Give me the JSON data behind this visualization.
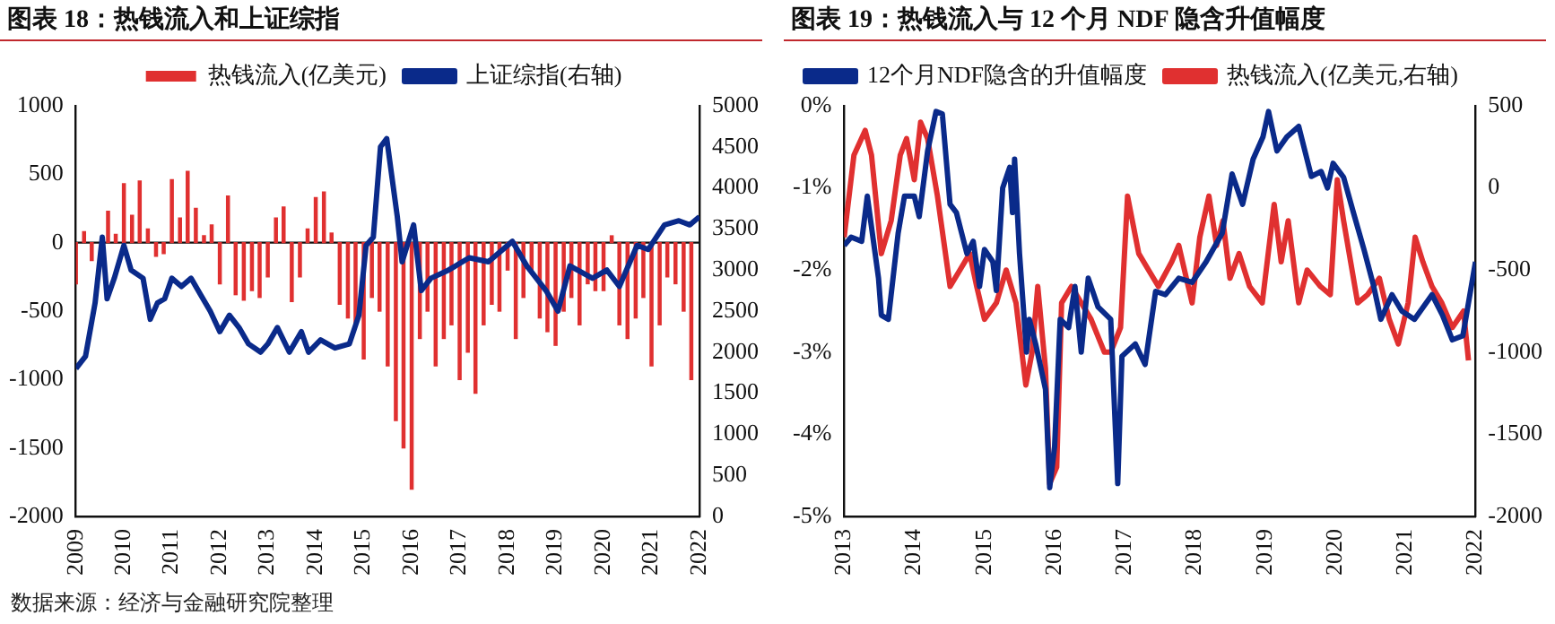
{
  "chart_data": [
    {
      "type": "bar",
      "title": "图表 18：热钱流入和上证综指",
      "annotations": [
        "数据来源：经济与金融研究院整理"
      ],
      "xlim": [
        2009,
        2022
      ],
      "xticks": [
        2009,
        2010,
        2011,
        2012,
        2013,
        2014,
        2015,
        2016,
        2017,
        2018,
        2019,
        2020,
        2021,
        2022
      ],
      "ylim": [
        -2000,
        1000
      ],
      "yticks": [
        -2000,
        -1500,
        -1000,
        -500,
        0,
        500,
        1000
      ],
      "y2lim": [
        0,
        5000
      ],
      "y2ticks": [
        0,
        500,
        1000,
        1500,
        2000,
        2500,
        3000,
        3500,
        4000,
        4500,
        5000
      ],
      "legend": "top",
      "series": [
        {
          "name": "热钱流入(亿美元)",
          "type": "bar",
          "color": "#e03030",
          "x": [
            2009,
            2009.17,
            2009.33,
            2009.5,
            2009.67,
            2009.83,
            2010,
            2010.17,
            2010.33,
            2010.5,
            2010.67,
            2010.83,
            2011,
            2011.17,
            2011.33,
            2011.5,
            2011.67,
            2011.83,
            2012,
            2012.17,
            2012.33,
            2012.5,
            2012.67,
            2012.83,
            2013,
            2013.17,
            2013.33,
            2013.5,
            2013.67,
            2013.83,
            2014,
            2014.17,
            2014.33,
            2014.5,
            2014.67,
            2014.83,
            2015,
            2015.17,
            2015.33,
            2015.5,
            2015.67,
            2015.83,
            2016,
            2016.17,
            2016.33,
            2016.5,
            2016.67,
            2016.83,
            2017,
            2017.17,
            2017.33,
            2017.5,
            2017.67,
            2017.83,
            2018,
            2018.17,
            2018.33,
            2018.5,
            2018.67,
            2018.83,
            2019,
            2019.17,
            2019.33,
            2019.5,
            2019.67,
            2019.83,
            2020,
            2020.17,
            2020.33,
            2020.5,
            2020.67,
            2020.83,
            2021,
            2021.17,
            2021.33,
            2021.5,
            2021.67,
            2021.83
          ],
          "values": [
            -300,
            80,
            -130,
            null,
            230,
            60,
            430,
            200,
            450,
            100,
            -100,
            -80,
            460,
            180,
            520,
            250,
            50,
            130,
            -300,
            340,
            -380,
            -420,
            -350,
            -400,
            -250,
            180,
            260,
            -430,
            -250,
            100,
            330,
            370,
            70,
            -450,
            -550,
            -600,
            -850,
            -400,
            -500,
            -900,
            -1300,
            -1500,
            -1800,
            -700,
            -500,
            -900,
            -700,
            -600,
            -1000,
            -800,
            -1100,
            -600,
            -450,
            -500,
            -200,
            -700,
            -400,
            -200,
            -550,
            -650,
            -750,
            -500,
            -400,
            -600,
            -300,
            -350,
            -350,
            50,
            -600,
            -700,
            -550,
            -400,
            -900,
            -600,
            -250,
            -300,
            -500,
            -1000
          ]
        },
        {
          "name": "上证综指(右轴)",
          "type": "line",
          "axis": "y2",
          "color": "#0a2a8a",
          "x": [
            2009,
            2009.2,
            2009.4,
            2009.55,
            2009.65,
            2009.8,
            2010,
            2010.15,
            2010.4,
            2010.55,
            2010.7,
            2010.85,
            2011,
            2011.2,
            2011.4,
            2011.6,
            2011.8,
            2012,
            2012.2,
            2012.4,
            2012.6,
            2012.85,
            2013,
            2013.2,
            2013.45,
            2013.7,
            2013.85,
            2014.1,
            2014.4,
            2014.7,
            2014.9,
            2015.05,
            2015.2,
            2015.35,
            2015.48,
            2015.7,
            2015.8,
            2016.04,
            2016.2,
            2016.4,
            2016.77,
            2017.2,
            2017.6,
            2018.1,
            2018.4,
            2018.8,
            2019.05,
            2019.3,
            2019.77,
            2020.07,
            2020.33,
            2020.7,
            2020.93,
            2021.27,
            2021.57,
            2021.8,
            2022
          ],
          "values": [
            1800,
            1950,
            2600,
            3400,
            2650,
            2900,
            3300,
            3000,
            2900,
            2400,
            2600,
            2650,
            2900,
            2800,
            2900,
            2700,
            2500,
            2250,
            2450,
            2300,
            2100,
            2000,
            2100,
            2300,
            2000,
            2250,
            2000,
            2150,
            2050,
            2100,
            2450,
            3300,
            3400,
            4500,
            4600,
            3650,
            3100,
            3550,
            2750,
            2900,
            3000,
            3150,
            3100,
            3350,
            3050,
            2750,
            2500,
            3050,
            2900,
            3000,
            2800,
            3300,
            3250,
            3550,
            3600,
            3550,
            3650
          ]
        }
      ]
    },
    {
      "type": "line",
      "title": "图表 19：热钱流入与 12 个月 NDF 隐含升值幅度",
      "xlim": [
        2013,
        2022
      ],
      "xticks": [
        2013,
        2014,
        2015,
        2016,
        2017,
        2018,
        2019,
        2020,
        2021,
        2022
      ],
      "ylim": [
        -5,
        0
      ],
      "yticks": [
        {
          "value": -5,
          "label": "-5%"
        },
        {
          "value": -4,
          "label": "-4%"
        },
        {
          "value": -3,
          "label": "-3%"
        },
        {
          "value": -2,
          "label": "-2%"
        },
        {
          "value": -1,
          "label": "-1%"
        },
        {
          "value": 0,
          "label": "0%"
        }
      ],
      "y2lim": [
        -2000,
        500
      ],
      "y2ticks": [
        -2000,
        -1500,
        -1000,
        -500,
        0,
        500
      ],
      "legend": "top left",
      "series": [
        {
          "name": "12个月NDF隐含的升值幅度",
          "color": "#0a2a8a",
          "x": [
            2013,
            2013.1,
            2013.25,
            2013.33,
            2013.49,
            2013.53,
            2013.63,
            2013.77,
            2013.86,
            2014,
            2014.07,
            2014.19,
            2014.31,
            2014.4,
            2014.51,
            2014.6,
            2014.75,
            2014.84,
            2014.93,
            2015,
            2015.12,
            2015.17,
            2015.26,
            2015.36,
            2015.4,
            2015.43,
            2015.5,
            2015.6,
            2015.64,
            2015.73,
            2015.87,
            2015.93,
            2016,
            2016.08,
            2016.2,
            2016.29,
            2016.38,
            2016.48,
            2016.62,
            2016.8,
            2016.9,
            2016.96,
            2017.15,
            2017.29,
            2017.44,
            2017.58,
            2017.77,
            2017.96,
            2018.16,
            2018.39,
            2018.53,
            2018.68,
            2018.83,
            2018.97,
            2019.05,
            2019.17,
            2019.31,
            2019.48,
            2019.66,
            2019.8,
            2019.89,
            2019.97,
            2020.12,
            2020.26,
            2020.41,
            2020.55,
            2020.65,
            2020.81,
            2020.95,
            2021.13,
            2021.38,
            2021.53,
            2021.67,
            2021.82,
            2022
          ],
          "values": [
            -1.7,
            -1.6,
            -1.65,
            -1.1,
            -2.1,
            -2.55,
            -2.6,
            -1.55,
            -1.1,
            -1.1,
            -1.35,
            -0.55,
            -0.07,
            -0.1,
            -1.2,
            -1.3,
            -1.8,
            -1.65,
            -2.2,
            -1.75,
            -1.9,
            -2.25,
            -1,
            -0.75,
            -1.3,
            -0.65,
            -1.8,
            -3,
            -2.6,
            -2.9,
            -3.45,
            -4.65,
            -4.15,
            -2.6,
            -2.7,
            -2.2,
            -3,
            -2.1,
            -2.45,
            -2.6,
            -4.6,
            -3.05,
            -2.9,
            -3.15,
            -2.26,
            -2.3,
            -2.1,
            -2.15,
            -1.9,
            -1.55,
            -0.83,
            -1.2,
            -0.65,
            -0.38,
            -0.07,
            -0.55,
            -0.38,
            -0.25,
            -0.86,
            -0.8,
            -1,
            -0.7,
            -0.87,
            -1.3,
            -1.75,
            -2.2,
            -2.6,
            -2.3,
            -2.5,
            -2.6,
            -2.3,
            -2.55,
            -2.85,
            -2.8,
            -1.9
          ]
        },
        {
          "name": "热钱流入(亿美元,右轴)",
          "color": "#e03030",
          "axis": "y2",
          "x": [
            2013,
            2013.14,
            2013.3,
            2013.39,
            2013.53,
            2013.67,
            2013.8,
            2013.89,
            2014,
            2014.09,
            2014.19,
            2014.33,
            2014.51,
            2014.65,
            2014.79,
            2014.89,
            2015,
            2015.17,
            2015.31,
            2015.45,
            2015.59,
            2015.68,
            2015.76,
            2015.87,
            2015.93,
            2016.03,
            2016.1,
            2016.24,
            2016.38,
            2016.52,
            2016.71,
            2016.8,
            2016.94,
            2017.04,
            2017.2,
            2017.34,
            2017.48,
            2017.67,
            2017.77,
            2017.96,
            2018.07,
            2018.2,
            2018.31,
            2018.4,
            2018.5,
            2018.63,
            2018.78,
            2018.96,
            2019.13,
            2019.23,
            2019.33,
            2019.48,
            2019.6,
            2019.79,
            2019.93,
            2020.03,
            2020.12,
            2020.32,
            2020.46,
            2020.63,
            2020.77,
            2020.9,
            2021.04,
            2021.14,
            2021.25,
            2021.38,
            2021.52,
            2021.67,
            2021.83,
            2021.9
          ],
          "values": [
            -300,
            200,
            350,
            200,
            -400,
            -200,
            200,
            300,
            50,
            400,
            300,
            -50,
            -600,
            -500,
            -400,
            -600,
            -800,
            -700,
            -500,
            -700,
            -1200,
            -1000,
            -600,
            -1100,
            -1800,
            -1700,
            -700,
            -600,
            -700,
            -800,
            -1000,
            -1000,
            -850,
            -50,
            -400,
            -500,
            -600,
            -450,
            -350,
            -700,
            -300,
            -50,
            -350,
            -200,
            -550,
            -400,
            -600,
            -700,
            -100,
            -450,
            -200,
            -700,
            -500,
            -600,
            -650,
            50,
            -200,
            -700,
            -650,
            -550,
            -800,
            -950,
            -700,
            -300,
            -450,
            -600,
            -700,
            -850,
            -750,
            -1050
          ]
        }
      ]
    }
  ]
}
